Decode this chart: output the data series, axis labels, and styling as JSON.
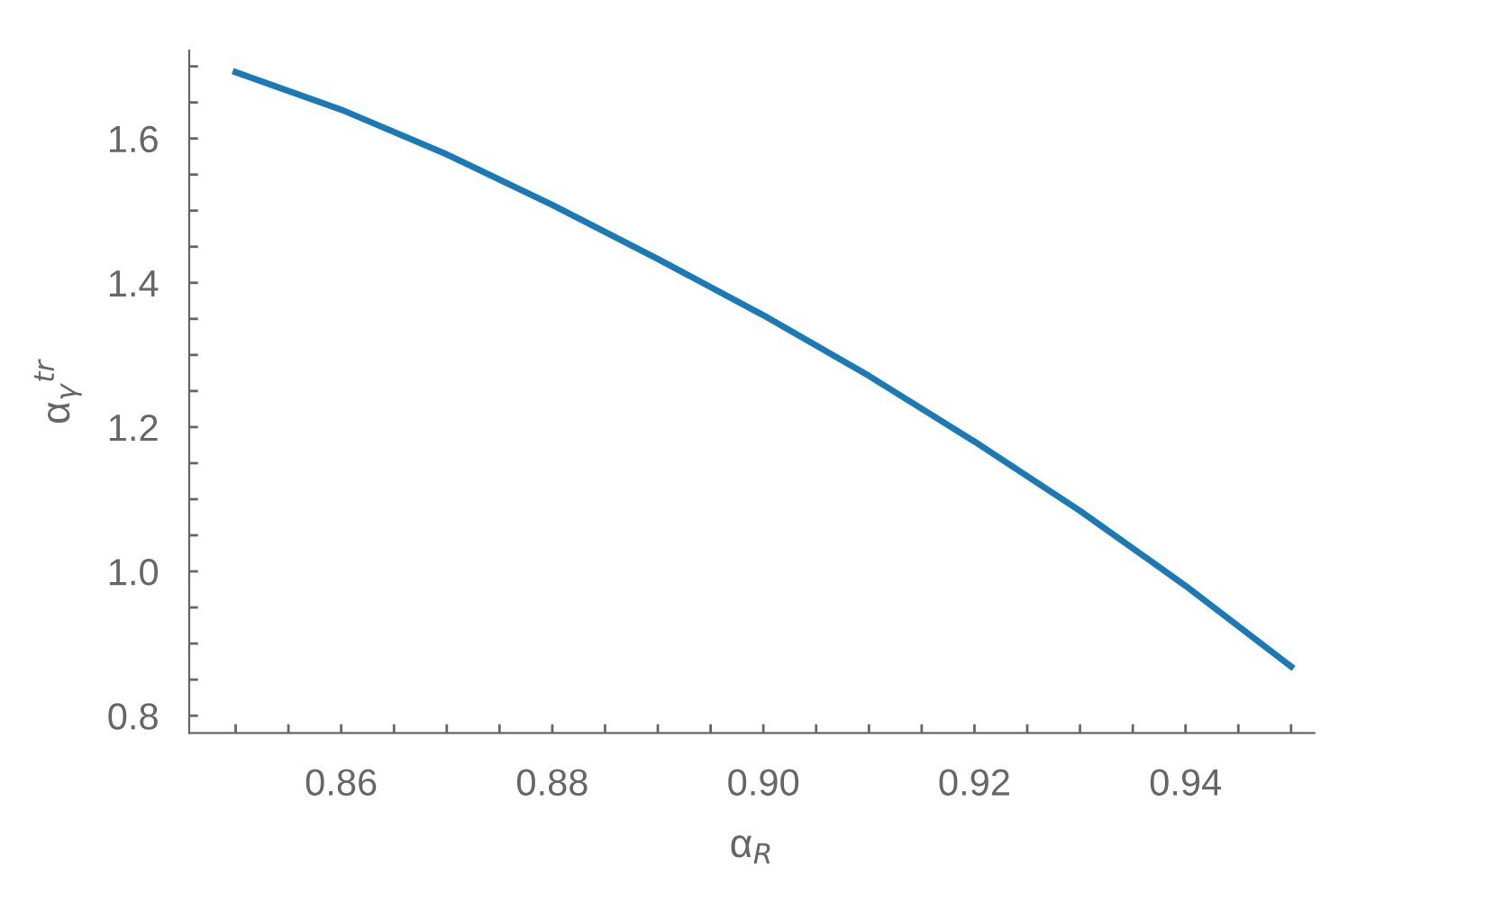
{
  "chart_data": {
    "type": "line",
    "xlabel": "α$_{R}$",
    "ylabel": "α$_{γ}$$^{tr}$",
    "xlim": [
      0.8456,
      0.9522
    ],
    "ylim": [
      0.776,
      1.722
    ],
    "xticks": [
      {
        "value": 0.85,
        "label": null
      },
      {
        "value": 0.86,
        "label": "0.86"
      },
      {
        "value": 0.855,
        "label": null
      },
      {
        "value": 0.865,
        "label": null
      },
      {
        "value": 0.87,
        "label": null
      },
      {
        "value": 0.875,
        "label": null
      },
      {
        "value": 0.88,
        "label": "0.88"
      },
      {
        "value": 0.885,
        "label": null
      },
      {
        "value": 0.89,
        "label": null
      },
      {
        "value": 0.895,
        "label": null
      },
      {
        "value": 0.9,
        "label": "0.90"
      },
      {
        "value": 0.905,
        "label": null
      },
      {
        "value": 0.91,
        "label": null
      },
      {
        "value": 0.915,
        "label": null
      },
      {
        "value": 0.92,
        "label": "0.92"
      },
      {
        "value": 0.925,
        "label": null
      },
      {
        "value": 0.93,
        "label": null
      },
      {
        "value": 0.935,
        "label": null
      },
      {
        "value": 0.94,
        "label": "0.94"
      },
      {
        "value": 0.945,
        "label": null
      },
      {
        "value": 0.95,
        "label": null
      }
    ],
    "yticks": [
      {
        "value": 0.8,
        "label": "0.8"
      },
      {
        "value": 0.85,
        "label": null
      },
      {
        "value": 0.9,
        "label": null
      },
      {
        "value": 0.95,
        "label": null
      },
      {
        "value": 1.0,
        "label": "1.0"
      },
      {
        "value": 1.05,
        "label": null
      },
      {
        "value": 1.1,
        "label": null
      },
      {
        "value": 1.15,
        "label": null
      },
      {
        "value": 1.2,
        "label": "1.2"
      },
      {
        "value": 1.25,
        "label": null
      },
      {
        "value": 1.3,
        "label": null
      },
      {
        "value": 1.35,
        "label": null
      },
      {
        "value": 1.4,
        "label": "1.4"
      },
      {
        "value": 1.45,
        "label": null
      },
      {
        "value": 1.5,
        "label": null
      },
      {
        "value": 1.55,
        "label": null
      },
      {
        "value": 1.6,
        "label": "1.6"
      },
      {
        "value": 1.65,
        "label": null
      },
      {
        "value": 1.7,
        "label": null
      }
    ],
    "grid": false,
    "marker": "none",
    "line_style": "solid",
    "series": [
      {
        "color": "#1a7ab8",
        "x": [
          0.85,
          0.86,
          0.87,
          0.88,
          0.89,
          0.9,
          0.91,
          0.92,
          0.93,
          0.94,
          0.95
        ],
        "values": [
          1.692,
          1.64,
          1.578,
          1.508,
          1.433,
          1.355,
          1.271,
          1.18,
          1.084,
          0.98,
          0.868
        ]
      }
    ]
  }
}
